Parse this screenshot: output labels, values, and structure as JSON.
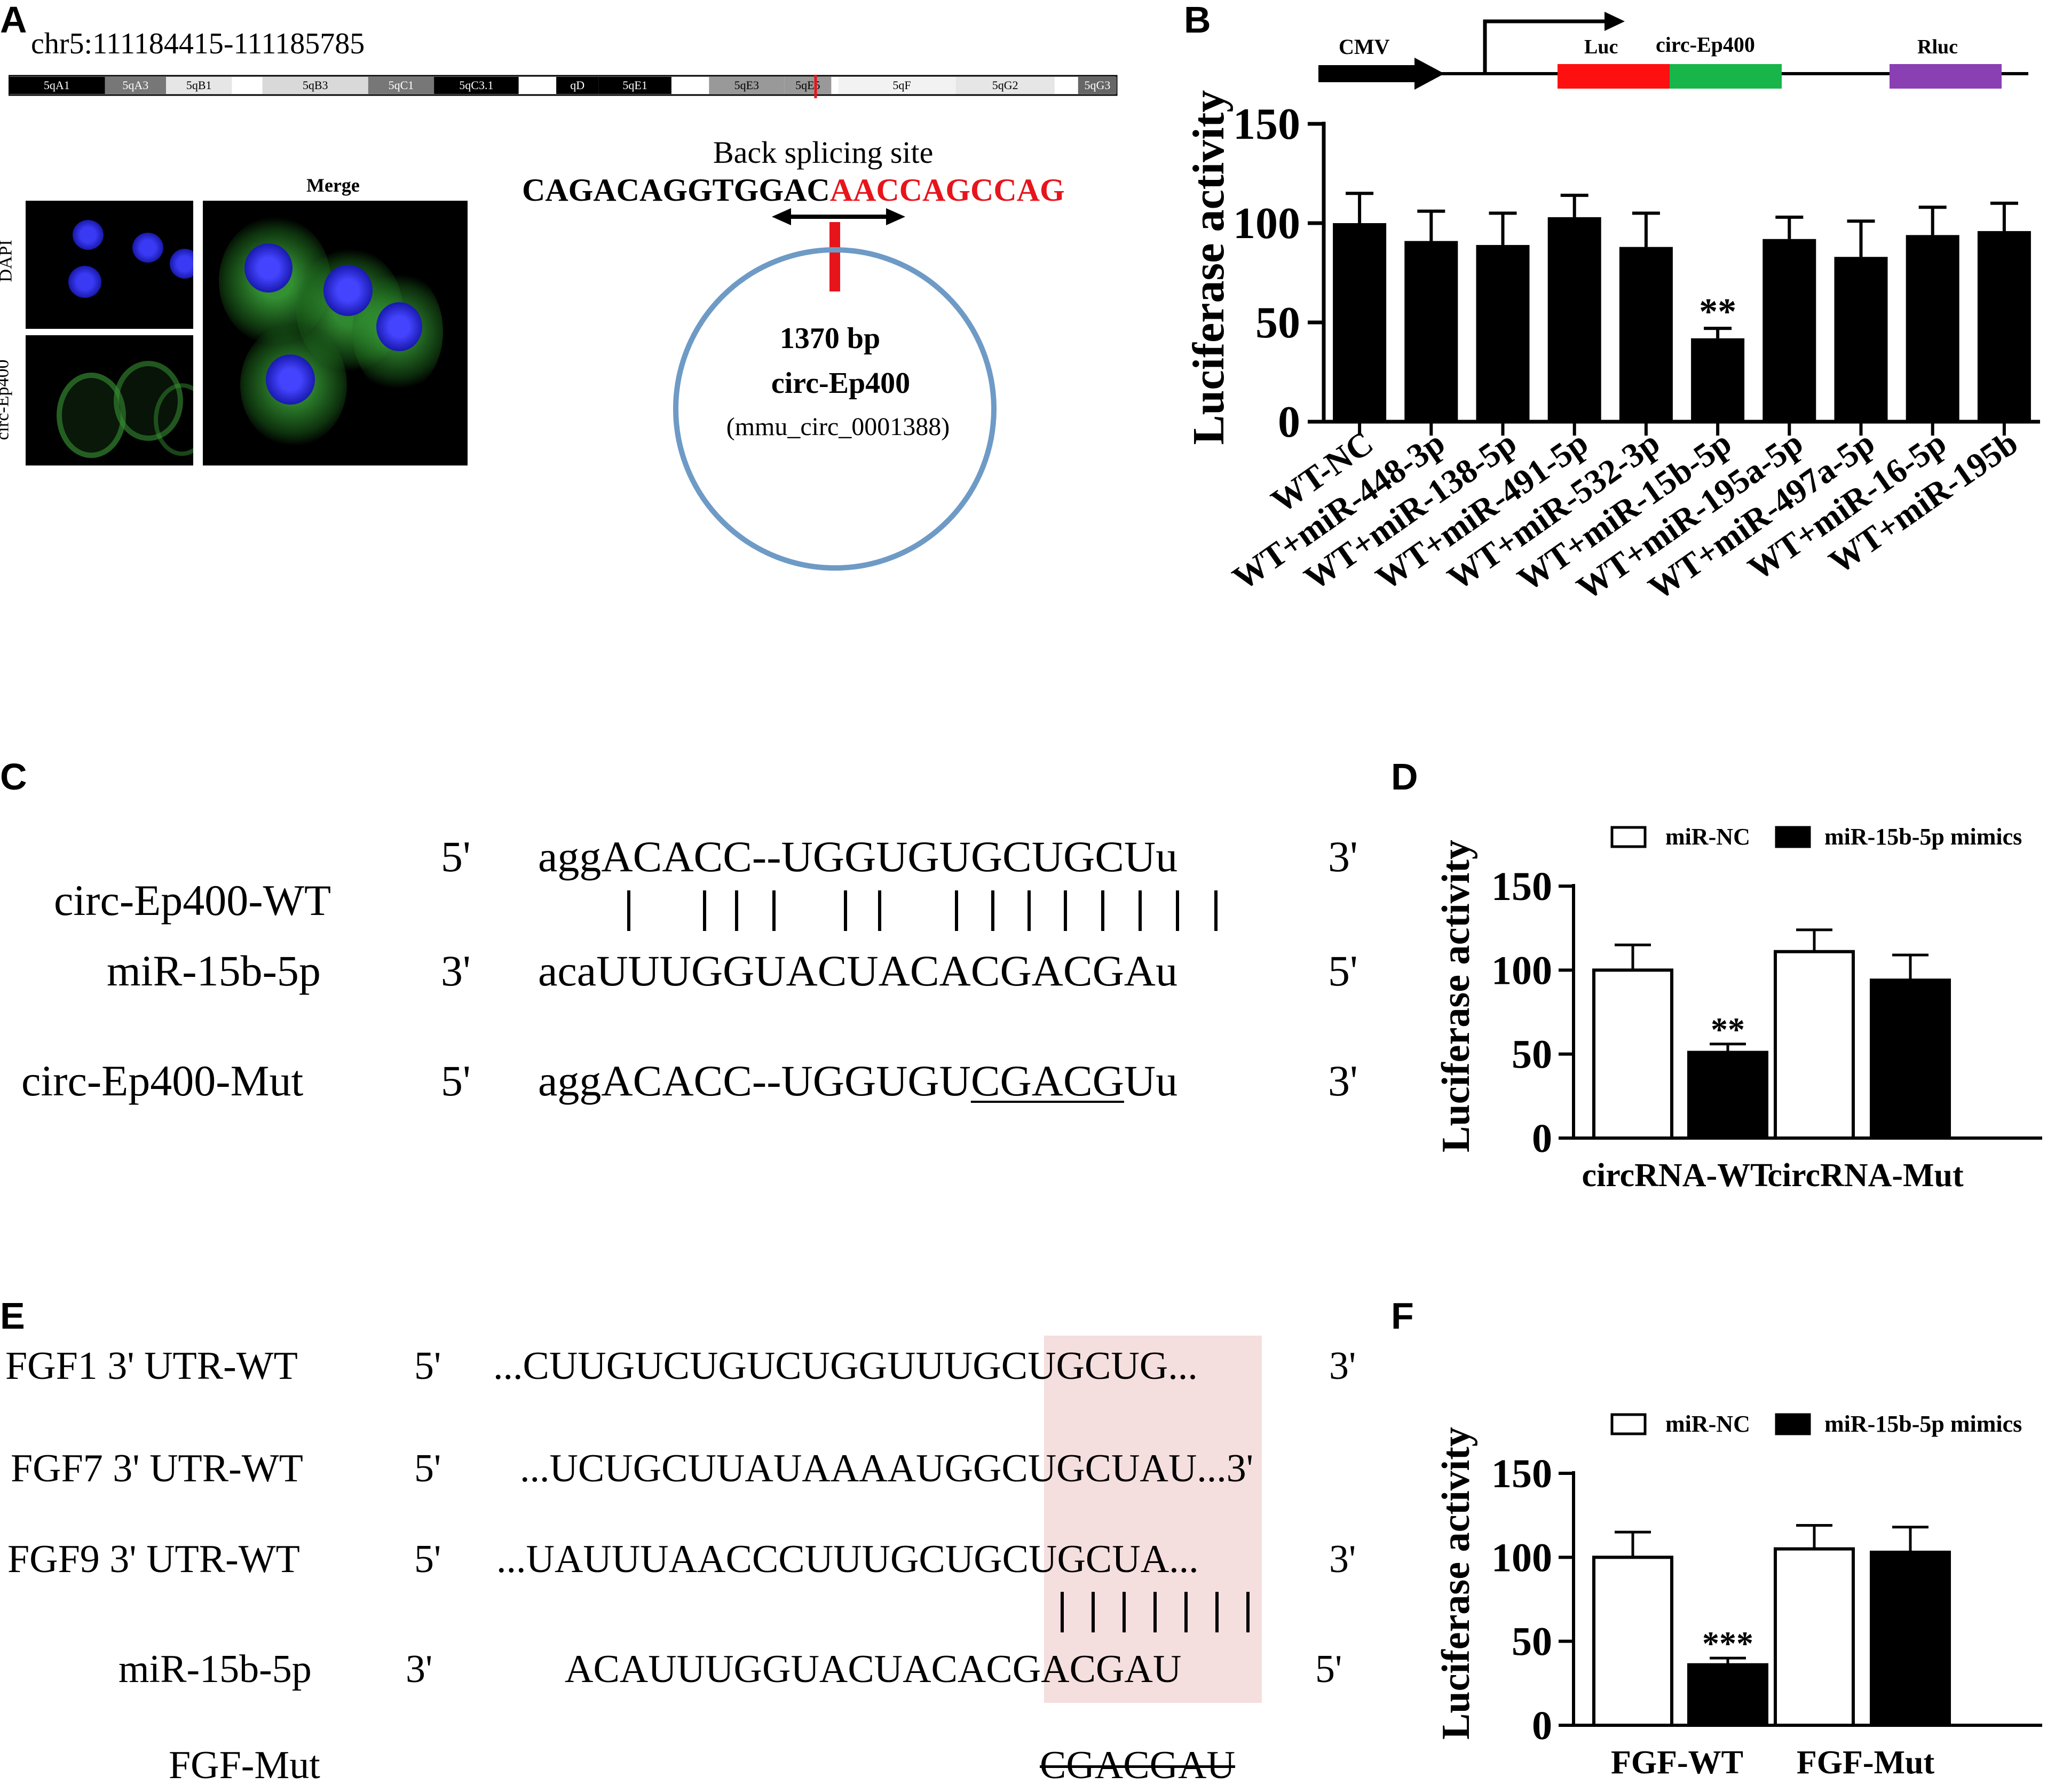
{
  "panels": {
    "A": "A",
    "B": "B",
    "C": "C",
    "D": "D",
    "E": "E",
    "F": "F"
  },
  "panelA": {
    "coord": "chr5:111184415-111185785",
    "bands": [
      "5qA1",
      "5qA3",
      "5qB1",
      "5qB3",
      "5qC1",
      "5qC3.1",
      "qD",
      "5qE1",
      "5qE3",
      "5qE5",
      "5qF",
      "5qG2",
      "5qG3"
    ],
    "img_labels": {
      "dapi": "DAPI",
      "circ": "circ-Ep400",
      "merge": "Merge"
    },
    "back_splice_title": "Back splicing site",
    "seq_black": "CAGACAGGTGGAC",
    "seq_red": "AACCAGCCAG",
    "circle_size": "1370 bp",
    "circle_name": "circ-Ep400",
    "circle_id": "(mmu_circ_0001388)",
    "colors": {
      "red": "#e8141b",
      "circle": "#6e9ac6",
      "dapi": "#2323e6",
      "green": "#3a9a36"
    }
  },
  "panelB": {
    "construct": {
      "cmv": "CMV",
      "luc": "Luc",
      "circ": "circ-Ep400",
      "rluc": "Rluc"
    },
    "colors": {
      "luc": "#ff1010",
      "circ": "#18b54a",
      "rluc": "#8a3fb2"
    }
  },
  "panelC": {
    "rows": [
      {
        "name": "circ-Ep400-WT",
        "end5": "5'",
        "seq_lower": "agg",
        "seq_upper": "ACACC--UGGUGUGCUGCU",
        "seq_tail": "u",
        "end3": "3'"
      },
      {
        "name": "miR-15b-5p",
        "end5": "3'",
        "seq_lower": "aca",
        "seq_upper": "UUUGGUACUACACGACGA",
        "seq_tail": "u",
        "end3": "5'"
      },
      {
        "name": "circ-Ep400-Mut",
        "end5": "5'",
        "seq_lower": "agg",
        "seq_upper": "ACACC--UGGUGU",
        "seq_under": "CGACG",
        "seq_upper2": "U",
        "seq_tail": "u",
        "end3": "3'"
      }
    ],
    "pairs": "|    |  |  |    |  |     |  |  |  |  |  |  |  |"
  },
  "panelE": {
    "rows": [
      {
        "name": "FGF1 3' UTR-WT",
        "end5": "5'",
        "seq": "...CUUGUCUGUCUGGUUUGCUGCUG...",
        "end3": "3'"
      },
      {
        "name": "FGF7 3' UTR-WT",
        "end5": "5'",
        "seq": "...UCUGCUUAUAAAAUGGCUGCUAU...3'",
        "end3": ""
      },
      {
        "name": "FGF9 3' UTR-WT",
        "end5": "5'",
        "seq": "...UAUUUAACCCUUUGCUGCUGCUA...",
        "end3": "3'"
      },
      {
        "name": "miR-15b-5p",
        "end5": "3'",
        "seq": "ACAUUUGGUACUACACGACGAU",
        "end3": "5'"
      },
      {
        "name": "FGF-Mut",
        "end5": "",
        "seq": "CGACGAU",
        "end3": ""
      }
    ],
    "pairs": "| | | | | | |",
    "highlight_color": "#f5dede"
  },
  "chart_data": [
    {
      "id": "B",
      "type": "bar",
      "ylabel": "Luciferase activity",
      "ylim": [
        0,
        150
      ],
      "yticks": [
        "0",
        "50",
        "100",
        "150"
      ],
      "categories": [
        "WT-NC",
        "WT+miR-448-3p",
        "WT+miR-138-5p",
        "WT+miR-491-5p",
        "WT+miR-532-3p",
        "WT+miR-15b-5p",
        "WT+miR-195a-5p",
        "WT+miR-497a-5p",
        "WT+miR-16-5p",
        "WT+miR-195b"
      ],
      "values": [
        100,
        91,
        89,
        103,
        88,
        42,
        92,
        83,
        94,
        96
      ],
      "errors": [
        15,
        15,
        16,
        11,
        17,
        5,
        11,
        18,
        14,
        14
      ],
      "annotations": [
        "",
        "",
        "",
        "",
        "",
        "**",
        "",
        "",
        "",
        ""
      ],
      "bar_color": "#000000"
    },
    {
      "id": "D",
      "type": "bar",
      "ylabel": "Luciferase activity",
      "ylim": [
        0,
        150
      ],
      "yticks": [
        "0",
        "50",
        "100",
        "150"
      ],
      "categories": [
        "circRNA-WT",
        "circRNA-Mut"
      ],
      "series": [
        {
          "name": "miR-NC",
          "values": [
            100,
            111
          ],
          "errors": [
            15,
            13
          ],
          "fill": "#ffffff"
        },
        {
          "name": "miR-15b-5p mimics",
          "values": [
            51,
            94
          ],
          "errors": [
            5,
            15
          ],
          "fill": "#000000"
        }
      ],
      "annotations": [
        [
          "",
          ""
        ],
        [
          "**",
          ""
        ]
      ],
      "legend": "top"
    },
    {
      "id": "F",
      "type": "bar",
      "ylabel": "Luciferase activity",
      "ylim": [
        0,
        150
      ],
      "yticks": [
        "0",
        "50",
        "100",
        "150"
      ],
      "categories": [
        "FGF-WT",
        "FGF-Mut"
      ],
      "series": [
        {
          "name": "miR-NC",
          "values": [
            100,
            105
          ],
          "errors": [
            15,
            14
          ],
          "fill": "#ffffff"
        },
        {
          "name": "miR-15b-5p mimics",
          "values": [
            36,
            103
          ],
          "errors": [
            4,
            15
          ],
          "fill": "#000000"
        }
      ],
      "annotations": [
        [
          "",
          ""
        ],
        [
          "***",
          ""
        ]
      ],
      "legend": "top"
    }
  ]
}
